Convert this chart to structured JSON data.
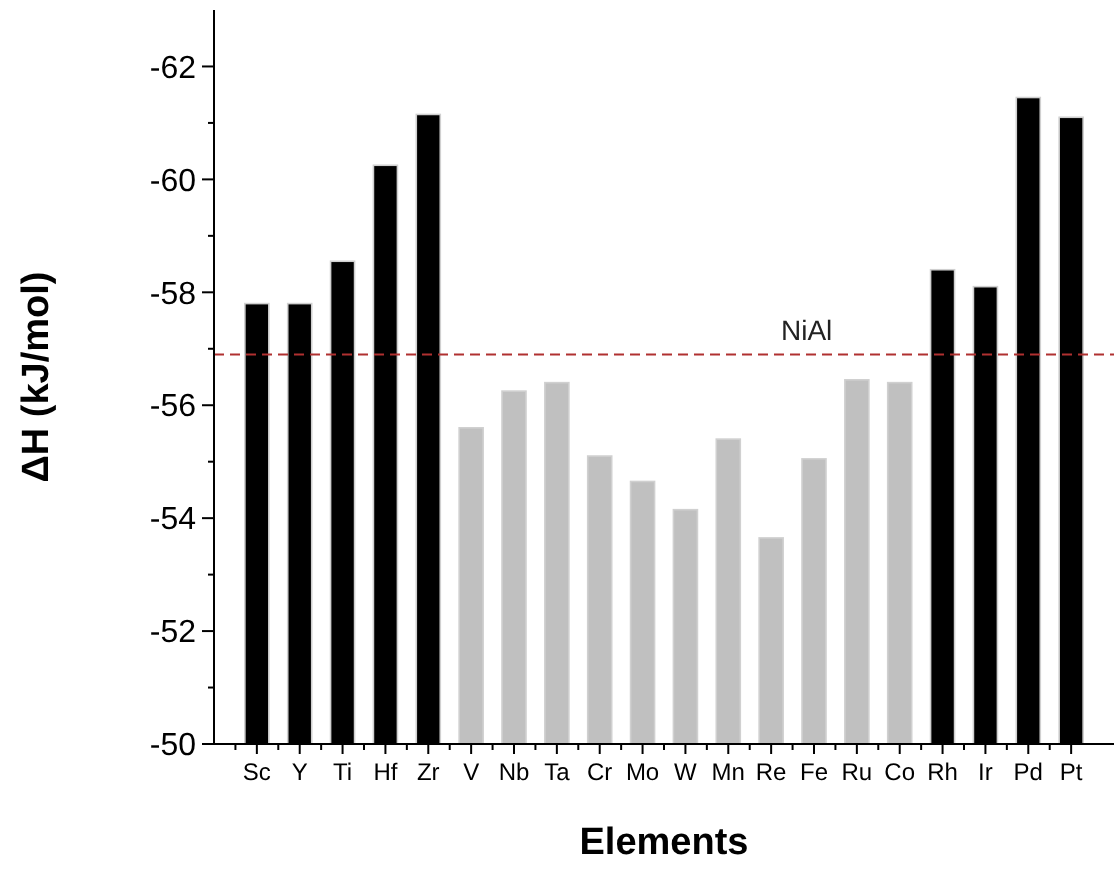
{
  "chart_data": {
    "type": "bar",
    "xlabel": "Elements",
    "ylabel": "ΔH (kJ/mol)",
    "categories": [
      "Sc",
      "Y",
      "Ti",
      "Hf",
      "Zr",
      "V",
      "Nb",
      "Ta",
      "Cr",
      "Mo",
      "W",
      "Mn",
      "Re",
      "Fe",
      "Ru",
      "Co",
      "Rh",
      "Ir",
      "Pd",
      "Pt"
    ],
    "values": [
      -57.8,
      -57.8,
      -58.55,
      -60.25,
      -61.15,
      -55.6,
      -56.25,
      -56.4,
      -55.1,
      -54.65,
      -54.15,
      -55.4,
      -53.65,
      -55.05,
      -56.45,
      -56.4,
      -58.4,
      -58.1,
      -61.45,
      -61.1
    ],
    "colors": [
      "#000000",
      "#000000",
      "#000000",
      "#000000",
      "#000000",
      "#c0c0c0",
      "#c0c0c0",
      "#c0c0c0",
      "#c0c0c0",
      "#c0c0c0",
      "#c0c0c0",
      "#c0c0c0",
      "#c0c0c0",
      "#c0c0c0",
      "#c0c0c0",
      "#c0c0c0",
      "#000000",
      "#000000",
      "#000000",
      "#000000"
    ],
    "ylim": [
      -50,
      -63
    ],
    "yticks": [
      -50,
      {
        "value": -51,
        "label": null
      },
      -52,
      {
        "value": -53,
        "label": null
      },
      -54,
      {
        "value": -55,
        "label": null
      },
      -56,
      {
        "value": -57,
        "label": null
      },
      -58,
      {
        "value": -59,
        "label": null
      },
      -60,
      {
        "value": -61,
        "label": null
      },
      -62
    ],
    "ref_lines": [
      {
        "axis": "y",
        "value": -56.9,
        "label": "NiAl",
        "color": "#b03030",
        "line_style": "dashed"
      }
    ],
    "grid": false
  }
}
